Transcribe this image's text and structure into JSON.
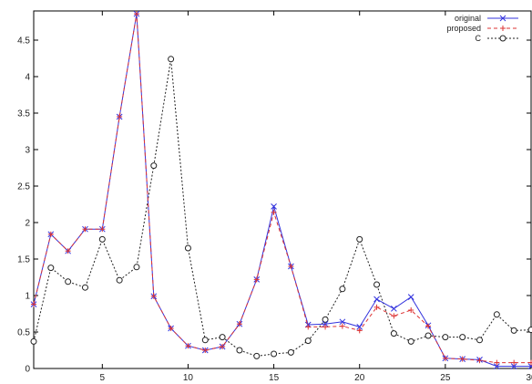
{
  "chart_data": {
    "type": "line",
    "title": "",
    "xlabel": "",
    "ylabel": "",
    "xlim": [
      1,
      30
    ],
    "ylim": [
      0,
      4.9
    ],
    "x_ticks": [
      5,
      10,
      15,
      20,
      25,
      30
    ],
    "x_tick_labels": [
      "5",
      "10",
      "15",
      "20",
      "25",
      "30"
    ],
    "y_ticks": [
      0,
      0.5,
      1,
      1.5,
      2,
      2.5,
      3,
      3.5,
      4,
      4.5
    ],
    "y_tick_labels": [
      "0",
      "0.5",
      "1",
      "1.5",
      "2",
      "2.5",
      "3",
      "3.5",
      "4",
      "4.5"
    ],
    "grid": false,
    "legend_position": "top-right",
    "x": [
      1,
      2,
      3,
      4,
      5,
      6,
      7,
      8,
      9,
      10,
      11,
      12,
      13,
      14,
      15,
      16,
      17,
      18,
      19,
      20,
      21,
      22,
      23,
      24,
      25,
      26,
      27,
      28,
      29,
      30
    ],
    "series": [
      {
        "name": "original",
        "color": "#3333dd",
        "line_style": "solid",
        "marker": "x",
        "values": [
          0.88,
          1.84,
          1.61,
          1.91,
          1.91,
          3.45,
          4.86,
          0.99,
          0.55,
          0.31,
          0.25,
          0.3,
          0.61,
          1.22,
          2.22,
          1.4,
          0.6,
          0.61,
          0.64,
          0.57,
          0.95,
          0.82,
          0.98,
          0.59,
          0.14,
          0.13,
          0.12,
          0.03,
          0.03,
          0.03
        ]
      },
      {
        "name": "proposed",
        "color": "#dd3333",
        "line_style": "dashed",
        "marker": "+",
        "values": [
          0.88,
          1.84,
          1.61,
          1.91,
          1.91,
          3.45,
          4.86,
          0.99,
          0.55,
          0.31,
          0.25,
          0.3,
          0.61,
          1.22,
          2.14,
          1.4,
          0.57,
          0.57,
          0.58,
          0.52,
          0.84,
          0.72,
          0.8,
          0.58,
          0.14,
          0.13,
          0.11,
          0.08,
          0.08,
          0.08
        ]
      },
      {
        "name": "C",
        "color": "#222222",
        "line_style": "dotted",
        "marker": "o",
        "values": [
          0.37,
          1.38,
          1.19,
          1.11,
          1.77,
          1.21,
          1.39,
          2.78,
          4.24,
          1.65,
          0.39,
          0.43,
          0.25,
          0.17,
          0.2,
          0.22,
          0.38,
          0.67,
          1.09,
          1.77,
          1.15,
          0.48,
          0.37,
          0.45,
          0.43,
          0.43,
          0.39,
          0.74,
          0.52,
          0.53
        ]
      }
    ]
  }
}
